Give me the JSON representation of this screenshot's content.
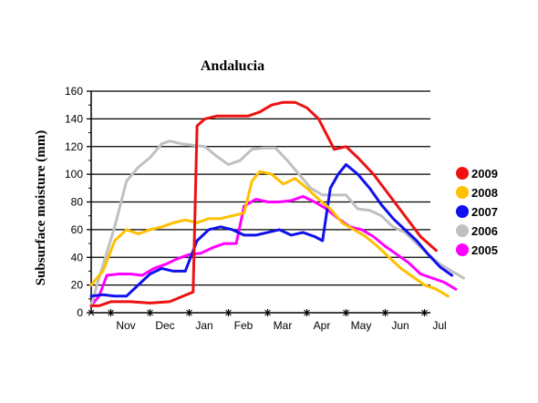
{
  "chart_data": {
    "type": "line",
    "title": "Andalucia",
    "xlabel": "",
    "ylabel": "Subsurface moisture (mm)",
    "ylim": [
      0,
      160
    ],
    "yticks": [
      0,
      20,
      40,
      60,
      80,
      100,
      120,
      140,
      160
    ],
    "xlim": [
      0,
      12.2
    ],
    "xtick_labels": [
      {
        "label": "Nov",
        "x": 1
      },
      {
        "label": "Dec",
        "x": 2
      },
      {
        "label": "Jan",
        "x": 3
      },
      {
        "label": "Feb",
        "x": 4
      },
      {
        "label": "Mar",
        "x": 5
      },
      {
        "label": "Apr",
        "x": 6
      },
      {
        "label": "May",
        "x": 7
      },
      {
        "label": "Jun",
        "x": 8
      },
      {
        "label": "Jul",
        "x": 9
      }
    ],
    "grid": true,
    "legend_position": "right",
    "series": [
      {
        "name": "2009",
        "color": "#ee1111",
        "points": [
          [
            0,
            5
          ],
          [
            0.2,
            5
          ],
          [
            0.5,
            8
          ],
          [
            1,
            8
          ],
          [
            1.5,
            7
          ],
          [
            2,
            8
          ],
          [
            2.6,
            15
          ],
          [
            2.7,
            135
          ],
          [
            2.9,
            140
          ],
          [
            3.2,
            142
          ],
          [
            3.5,
            142
          ],
          [
            3.8,
            142
          ],
          [
            4,
            142
          ],
          [
            4.3,
            145
          ],
          [
            4.6,
            150
          ],
          [
            4.9,
            152
          ],
          [
            5.2,
            152
          ],
          [
            5.5,
            148
          ],
          [
            5.8,
            140
          ],
          [
            6.2,
            118
          ],
          [
            6.5,
            120
          ],
          [
            6.8,
            112
          ],
          [
            7.2,
            100
          ],
          [
            7.6,
            85
          ],
          [
            8,
            70
          ],
          [
            8.4,
            55
          ],
          [
            8.8,
            45
          ]
        ]
      },
      {
        "name": "2008",
        "color": "#ffc000",
        "points": [
          [
            0,
            20
          ],
          [
            0.3,
            30
          ],
          [
            0.6,
            52
          ],
          [
            0.9,
            60
          ],
          [
            1.2,
            57
          ],
          [
            1.5,
            60
          ],
          [
            1.8,
            62
          ],
          [
            2.1,
            65
          ],
          [
            2.4,
            67
          ],
          [
            2.7,
            65
          ],
          [
            3,
            68
          ],
          [
            3.3,
            68
          ],
          [
            3.6,
            70
          ],
          [
            3.9,
            72
          ],
          [
            4.1,
            95
          ],
          [
            4.3,
            102
          ],
          [
            4.6,
            100
          ],
          [
            4.9,
            93
          ],
          [
            5.2,
            97
          ],
          [
            5.5,
            90
          ],
          [
            5.8,
            82
          ],
          [
            6.1,
            75
          ],
          [
            6.4,
            65
          ],
          [
            6.7,
            60
          ],
          [
            7,
            55
          ],
          [
            7.3,
            48
          ],
          [
            7.6,
            40
          ],
          [
            7.9,
            32
          ],
          [
            8.2,
            26
          ],
          [
            8.5,
            20
          ],
          [
            8.8,
            17
          ],
          [
            9.1,
            12
          ]
        ]
      },
      {
        "name": "2007",
        "color": "#1010ee",
        "points": [
          [
            0,
            12
          ],
          [
            0.3,
            13
          ],
          [
            0.6,
            12
          ],
          [
            0.9,
            12
          ],
          [
            1.2,
            20
          ],
          [
            1.5,
            28
          ],
          [
            1.8,
            32
          ],
          [
            2.1,
            30
          ],
          [
            2.4,
            30
          ],
          [
            2.7,
            52
          ],
          [
            3,
            60
          ],
          [
            3.3,
            62
          ],
          [
            3.6,
            60
          ],
          [
            3.9,
            56
          ],
          [
            4.2,
            56
          ],
          [
            4.5,
            58
          ],
          [
            4.8,
            60
          ],
          [
            5.1,
            56
          ],
          [
            5.4,
            58
          ],
          [
            5.7,
            55
          ],
          [
            5.9,
            52
          ],
          [
            6.1,
            90
          ],
          [
            6.3,
            100
          ],
          [
            6.5,
            107
          ],
          [
            6.8,
            100
          ],
          [
            7.1,
            90
          ],
          [
            7.4,
            78
          ],
          [
            7.7,
            68
          ],
          [
            8,
            60
          ],
          [
            8.3,
            52
          ],
          [
            8.6,
            42
          ],
          [
            8.9,
            33
          ],
          [
            9.2,
            27
          ]
        ]
      },
      {
        "name": "2006",
        "color": "#c0c0c0",
        "points": [
          [
            0,
            5
          ],
          [
            0.2,
            25
          ],
          [
            0.6,
            62
          ],
          [
            0.9,
            95
          ],
          [
            1.2,
            105
          ],
          [
            1.5,
            112
          ],
          [
            1.8,
            122
          ],
          [
            2,
            124
          ],
          [
            2.3,
            122
          ],
          [
            2.6,
            121
          ],
          [
            2.9,
            120
          ],
          [
            3.2,
            113
          ],
          [
            3.5,
            107
          ],
          [
            3.8,
            110
          ],
          [
            4.1,
            118
          ],
          [
            4.4,
            119
          ],
          [
            4.7,
            119
          ],
          [
            5,
            110
          ],
          [
            5.3,
            100
          ],
          [
            5.6,
            90
          ],
          [
            5.9,
            85
          ],
          [
            6.2,
            85
          ],
          [
            6.5,
            85
          ],
          [
            6.8,
            75
          ],
          [
            7.1,
            74
          ],
          [
            7.4,
            70
          ],
          [
            7.7,
            62
          ],
          [
            8,
            58
          ],
          [
            8.3,
            50
          ],
          [
            8.6,
            42
          ],
          [
            8.9,
            35
          ],
          [
            9.2,
            30
          ],
          [
            9.5,
            25
          ]
        ]
      },
      {
        "name": "2005",
        "color": "#ff00ff",
        "points": [
          [
            0,
            5
          ],
          [
            0.2,
            12
          ],
          [
            0.4,
            27
          ],
          [
            0.7,
            28
          ],
          [
            1,
            28
          ],
          [
            1.3,
            27
          ],
          [
            1.6,
            32
          ],
          [
            1.9,
            35
          ],
          [
            2.2,
            39
          ],
          [
            2.5,
            42
          ],
          [
            2.8,
            43
          ],
          [
            3.1,
            47
          ],
          [
            3.4,
            50
          ],
          [
            3.7,
            50
          ],
          [
            3.9,
            77
          ],
          [
            4.2,
            82
          ],
          [
            4.5,
            80
          ],
          [
            4.8,
            80
          ],
          [
            5.1,
            81
          ],
          [
            5.4,
            84
          ],
          [
            5.7,
            80
          ],
          [
            6,
            75
          ],
          [
            6.3,
            68
          ],
          [
            6.6,
            62
          ],
          [
            6.9,
            60
          ],
          [
            7.2,
            55
          ],
          [
            7.5,
            48
          ],
          [
            7.8,
            42
          ],
          [
            8.1,
            36
          ],
          [
            8.4,
            28
          ],
          [
            8.7,
            25
          ],
          [
            9,
            22
          ],
          [
            9.3,
            17
          ]
        ]
      }
    ]
  }
}
